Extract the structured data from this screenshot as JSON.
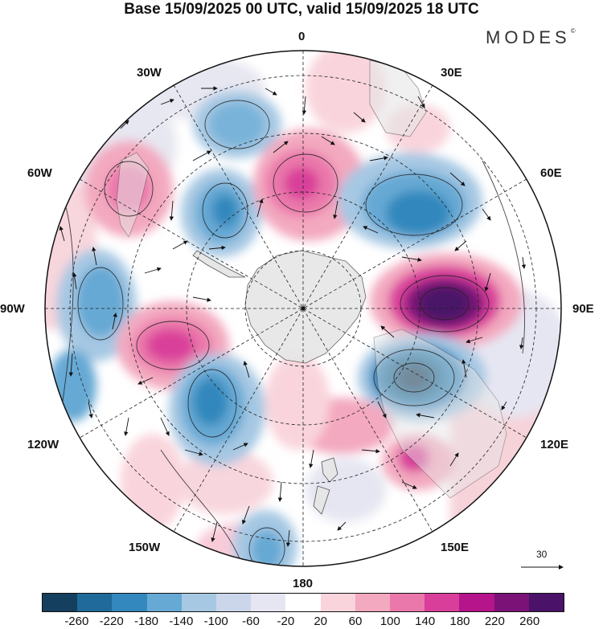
{
  "title": "Base 15/09/2025 00 UTC, valid 15/09/2025 18 UTC",
  "brand": "MODES",
  "brand_mark": "©",
  "longitude_labels": [
    "0",
    "30E",
    "60E",
    "90E",
    "120E",
    "150E",
    "180",
    "150W",
    "120W",
    "90W",
    "60W",
    "30W"
  ],
  "vector_reference": {
    "value": "30"
  },
  "colorbar": {
    "labels": [
      "-260",
      "-220",
      "-180",
      "-140",
      "-100",
      "-60",
      "-20",
      "20",
      "60",
      "100",
      "140",
      "180",
      "220",
      "260"
    ],
    "colors": [
      "#143f5e",
      "#1f6a9a",
      "#3388bd",
      "#66a9d4",
      "#a6c8e3",
      "#cbd6ea",
      "#e6e6f2",
      "#ffffff",
      "#f9d4dc",
      "#f3a9bf",
      "#ea78aa",
      "#d93f9a",
      "#b5148a",
      "#7b1278",
      "#4a1268"
    ]
  },
  "icons": {
    "north_arrow": "arrow-icon"
  }
}
